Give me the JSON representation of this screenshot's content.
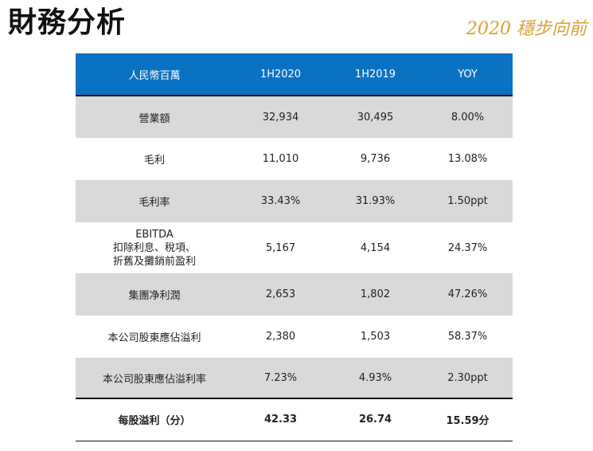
{
  "header": {
    "title": "財務分析",
    "slogan": "2020 穩步向前"
  },
  "table": {
    "columns": [
      "人民幣百萬",
      "1H2020",
      "1H2019",
      "YOY"
    ],
    "rows": [
      {
        "label": "營業額",
        "h1_2020": "32,934",
        "h1_2019": "30,495",
        "yoy": "8.00%"
      },
      {
        "label": "毛利",
        "h1_2020": "11,010",
        "h1_2019": "9,736",
        "yoy": "13.08%"
      },
      {
        "label": "毛利率",
        "h1_2020": "33.43%",
        "h1_2019": "31.93%",
        "yoy": "1.50ppt"
      },
      {
        "label_lines": [
          "EBITDA",
          "扣除利息、稅項、",
          "折舊及攤銷前盈利"
        ],
        "h1_2020": "5,167",
        "h1_2019": "4,154",
        "yoy": "24.37%"
      },
      {
        "label": "集團净利潤",
        "h1_2020": "2,653",
        "h1_2019": "1,802",
        "yoy": "47.26%"
      },
      {
        "label": "本公司股東應佔溢利",
        "h1_2020": "2,380",
        "h1_2019": "1,503",
        "yoy": "58.37%"
      },
      {
        "label": "本公司股東應佔溢利率",
        "h1_2020": "7.23%",
        "h1_2019": "4.93%",
        "yoy": "2.30ppt"
      }
    ],
    "total": {
      "label": "每股溢利（分）",
      "h1_2020": "42.33",
      "h1_2019": "26.74",
      "yoy": "15.59分"
    }
  },
  "colors": {
    "header_bg": "#0a72c2",
    "shaded_row": "#d9d9d9",
    "slogan": "#d9a130"
  }
}
